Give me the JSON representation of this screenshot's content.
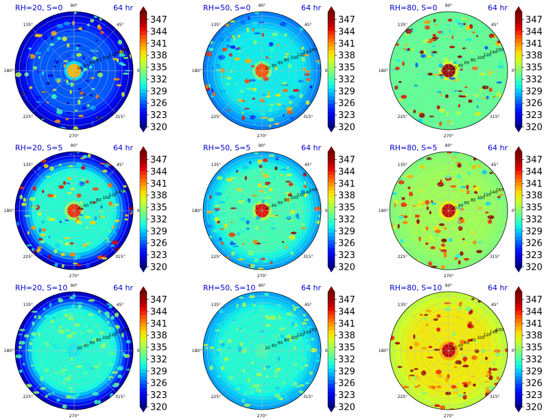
{
  "figure": {
    "colorbar_colors": [
      "#00007f",
      "#0000c8",
      "#0010ff",
      "#0060ff",
      "#00b0ff",
      "#10f8e6",
      "#50ffa6",
      "#8fff67",
      "#cfff28",
      "#ffe000",
      "#ff9800",
      "#ff4c00",
      "#e30000",
      "#9a0000",
      "#7f0000"
    ]
  },
  "chart_data": [
    {
      "type": "heatmap",
      "projection": "polar",
      "title_left": "RH=20, S=0",
      "title_right": "64 hr",
      "relative_humidity": 20,
      "shear": 0,
      "time_hr": 64,
      "colorbar_ticks": [
        320,
        323,
        326,
        329,
        332,
        335,
        338,
        341,
        344,
        347
      ],
      "color_range": [
        320,
        349
      ],
      "radial_ticks": [
        20,
        40,
        60,
        80,
        100,
        120,
        140,
        160
      ],
      "angle_ticks": [
        "0°",
        "45°",
        "90°",
        "135°",
        "180°",
        "225°",
        "270°",
        "315°"
      ],
      "core_value": 340,
      "background_value": 326,
      "edge_value": 322
    },
    {
      "type": "heatmap",
      "projection": "polar",
      "title_left": "RH=50, S=0",
      "title_right": "64 hr",
      "relative_humidity": 50,
      "shear": 0,
      "time_hr": 64,
      "colorbar_ticks": [
        320,
        323,
        326,
        329,
        332,
        335,
        338,
        341,
        344,
        347
      ],
      "color_range": [
        320,
        349
      ],
      "radial_ticks": [
        20,
        40,
        60,
        80,
        100,
        120,
        140,
        160
      ],
      "angle_ticks": [
        "0°",
        "45°",
        "90°",
        "135°",
        "180°",
        "225°",
        "270°",
        "315°"
      ],
      "core_value": 343,
      "background_value": 330,
      "edge_value": 327
    },
    {
      "type": "heatmap",
      "projection": "polar",
      "title_left": "RH=80, S=0",
      "title_right": "64 hr",
      "relative_humidity": 80,
      "shear": 0,
      "time_hr": 64,
      "colorbar_ticks": [
        320,
        323,
        326,
        329,
        332,
        335,
        338,
        341,
        344,
        347
      ],
      "color_range": [
        320,
        349
      ],
      "radial_ticks": [
        20,
        40,
        60,
        80,
        100,
        120,
        140,
        160
      ],
      "angle_ticks": [
        "0°",
        "45°",
        "90°",
        "135°",
        "180°",
        "225°",
        "270°",
        "315°"
      ],
      "core_value": 348,
      "background_value": 333,
      "edge_value": 333
    },
    {
      "type": "heatmap",
      "projection": "polar",
      "title_left": "RH=20, S=5",
      "title_right": "64 hr",
      "relative_humidity": 20,
      "shear": 5,
      "time_hr": 64,
      "colorbar_ticks": [
        320,
        323,
        326,
        329,
        332,
        335,
        338,
        341,
        344,
        347
      ],
      "color_range": [
        320,
        349
      ],
      "radial_ticks": [
        20,
        40,
        60,
        80,
        100,
        120,
        140,
        160
      ],
      "angle_ticks": [
        "0°",
        "45°",
        "90°",
        "135°",
        "180°",
        "225°",
        "270°",
        "315°"
      ],
      "core_value": 344,
      "background_value": 331,
      "edge_value": 322
    },
    {
      "type": "heatmap",
      "projection": "polar",
      "title_left": "RH=50, S=5",
      "title_right": "64 hr",
      "relative_humidity": 50,
      "shear": 5,
      "time_hr": 64,
      "colorbar_ticks": [
        320,
        323,
        326,
        329,
        332,
        335,
        338,
        341,
        344,
        347
      ],
      "color_range": [
        320,
        349
      ],
      "radial_ticks": [
        20,
        40,
        60,
        80,
        100,
        120,
        140,
        160
      ],
      "angle_ticks": [
        "0°",
        "45°",
        "90°",
        "135°",
        "180°",
        "225°",
        "270°",
        "315°"
      ],
      "core_value": 345,
      "background_value": 332,
      "edge_value": 328
    },
    {
      "type": "heatmap",
      "projection": "polar",
      "title_left": "RH=80, S=5",
      "title_right": "64 hr",
      "relative_humidity": 80,
      "shear": 5,
      "time_hr": 64,
      "colorbar_ticks": [
        320,
        323,
        326,
        329,
        332,
        335,
        338,
        341,
        344,
        347
      ],
      "color_range": [
        320,
        349
      ],
      "radial_ticks": [
        20,
        40,
        60,
        80,
        100,
        120,
        140,
        160
      ],
      "angle_ticks": [
        "0°",
        "45°",
        "90°",
        "135°",
        "180°",
        "225°",
        "270°",
        "315°"
      ],
      "core_value": 346,
      "background_value": 335,
      "edge_value": 334
    },
    {
      "type": "heatmap",
      "projection": "polar",
      "title_left": "RH=20, S=10",
      "title_right": "64 hr",
      "relative_humidity": 20,
      "shear": 10,
      "time_hr": 64,
      "colorbar_ticks": [
        320,
        323,
        326,
        329,
        332,
        335,
        338,
        341,
        344,
        347
      ],
      "color_range": [
        320,
        349
      ],
      "radial_ticks": [
        20,
        40,
        60,
        80,
        100,
        120,
        140,
        160
      ],
      "angle_ticks": [
        "0°",
        "45°",
        "90°",
        "135°",
        "180°",
        "225°",
        "270°",
        "315°"
      ],
      "core_value": 330,
      "background_value": 331,
      "edge_value": 322
    },
    {
      "type": "heatmap",
      "projection": "polar",
      "title_left": "RH=50, S=10",
      "title_right": "64 hr",
      "relative_humidity": 50,
      "shear": 10,
      "time_hr": 64,
      "colorbar_ticks": [
        320,
        323,
        326,
        329,
        332,
        335,
        338,
        341,
        344,
        347
      ],
      "color_range": [
        320,
        349
      ],
      "radial_ticks": [
        20,
        40,
        60,
        80,
        100,
        120,
        140,
        160
      ],
      "angle_ticks": [
        "0°",
        "45°",
        "90°",
        "135°",
        "180°",
        "225°",
        "270°",
        "315°"
      ],
      "core_value": 332,
      "background_value": 331,
      "edge_value": 328
    },
    {
      "type": "heatmap",
      "projection": "polar",
      "title_left": "RH=80, S=10",
      "title_right": "64 hr",
      "relative_humidity": 80,
      "shear": 10,
      "time_hr": 64,
      "colorbar_ticks": [
        320,
        323,
        326,
        329,
        332,
        335,
        338,
        341,
        344,
        347
      ],
      "color_range": [
        320,
        349
      ],
      "radial_ticks": [
        20,
        40,
        60,
        80,
        100,
        120,
        140,
        160
      ],
      "angle_ticks": [
        "0°",
        "45°",
        "90°",
        "135°",
        "180°",
        "225°",
        "270°",
        "315°"
      ],
      "core_value": 346,
      "background_value": 338,
      "edge_value": 336
    }
  ]
}
